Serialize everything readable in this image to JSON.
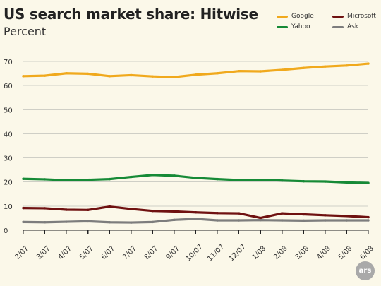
{
  "chart_data": {
    "type": "line",
    "title": "US search market share: Hitwise",
    "subtitle": "Percent",
    "categories": [
      "2/07",
      "3/07",
      "4/07",
      "5/07",
      "6/07",
      "7/07",
      "8/07",
      "9/07",
      "10/07",
      "11/07",
      "12/07",
      "1/08",
      "2/08",
      "3/08",
      "4/08",
      "5/08",
      "6/08"
    ],
    "series": [
      {
        "name": "Google",
        "color": "#f0a91d",
        "values": [
          63.9,
          64.1,
          65.1,
          64.9,
          63.9,
          64.3,
          63.8,
          63.5,
          64.5,
          65.1,
          66.0,
          65.9,
          66.5,
          67.3,
          67.9,
          68.3,
          69.1
        ]
      },
      {
        "name": "Microsoft",
        "color": "#6f1110",
        "values": [
          9.2,
          9.1,
          8.5,
          8.4,
          9.8,
          8.8,
          8.0,
          7.8,
          7.4,
          7.1,
          7.0,
          5.1,
          7.0,
          6.6,
          6.2,
          5.9,
          5.4
        ]
      },
      {
        "name": "Yahoo",
        "color": "#168a36",
        "values": [
          21.3,
          21.1,
          20.7,
          20.9,
          21.2,
          22.1,
          22.9,
          22.6,
          21.7,
          21.2,
          20.8,
          20.9,
          20.6,
          20.3,
          20.2,
          19.8,
          19.6
        ]
      },
      {
        "name": "Ask",
        "color": "#7d7d7d",
        "values": [
          3.4,
          3.3,
          3.5,
          3.7,
          3.3,
          3.2,
          3.4,
          4.3,
          4.7,
          4.1,
          4.1,
          4.2,
          4.1,
          4.0,
          4.1,
          4.1,
          4.1
        ]
      }
    ],
    "ylim": [
      0,
      70
    ],
    "yticks": [
      0,
      10,
      20,
      30,
      40,
      50,
      60,
      70
    ],
    "grid": true,
    "legend_position": "top-right"
  },
  "branding": {
    "logo_text": "ars"
  }
}
